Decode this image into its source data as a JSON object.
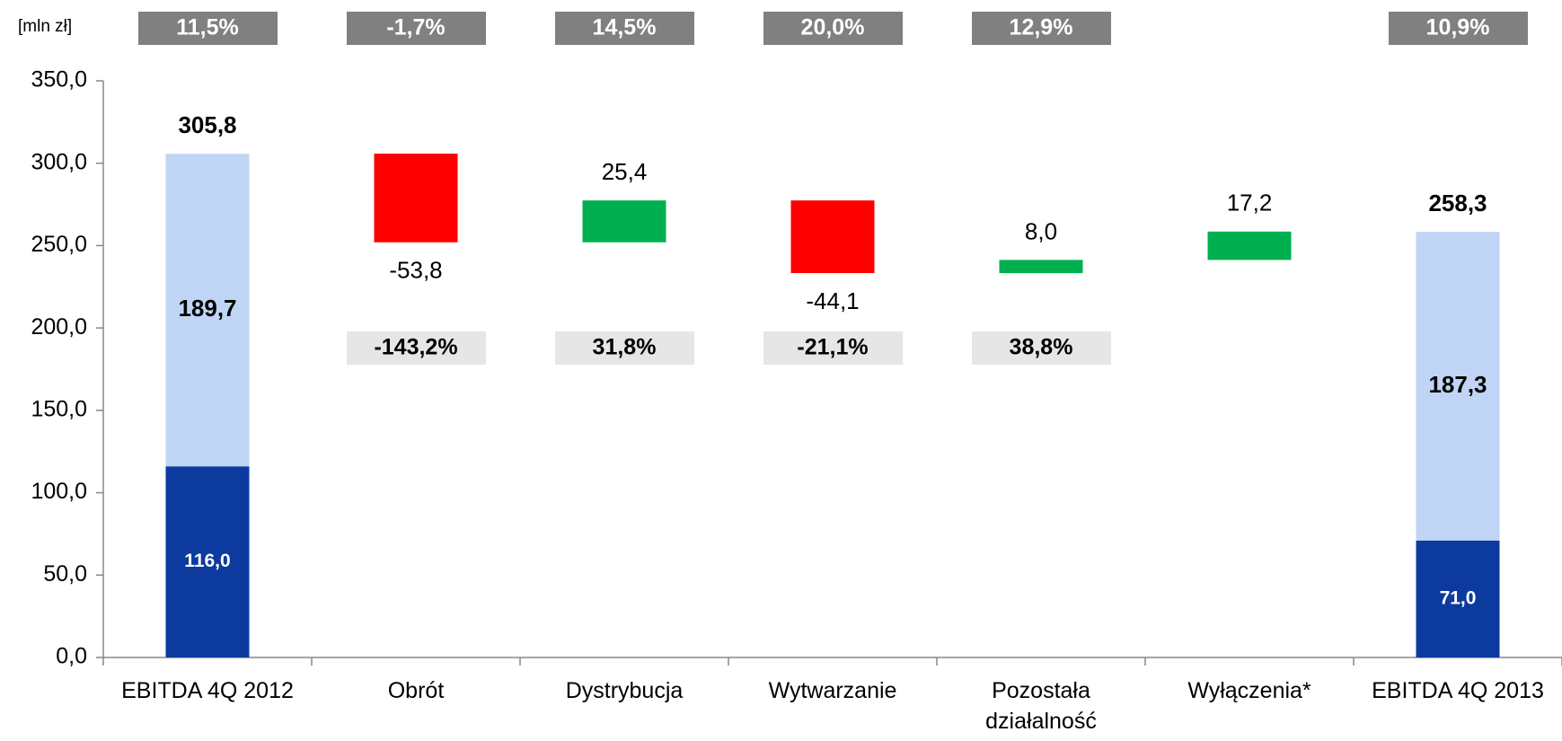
{
  "chart_data": {
    "type": "waterfall",
    "unit_label": "[mln zł]",
    "categories": [
      "EBITDA 4Q 2012",
      "Obrót",
      "Dystrybucja",
      "Wytwarzanie",
      "Pozostała\ndziałalność",
      "Wyłączenia*",
      "EBITDA 4Q 2013"
    ],
    "ylim": [
      0,
      350
    ],
    "yticks": [
      {
        "value": 0,
        "label": "0,0"
      },
      {
        "value": 50,
        "label": "50,0"
      },
      {
        "value": 100,
        "label": "100,0"
      },
      {
        "value": 150,
        "label": "150,0"
      },
      {
        "value": 200,
        "label": "200,0"
      },
      {
        "value": 250,
        "label": "250,0"
      },
      {
        "value": 300,
        "label": "300,0"
      },
      {
        "value": 350,
        "label": "350,0"
      }
    ],
    "totals": {
      "values": [
        305.8,
        null,
        null,
        null,
        null,
        null,
        258.3
      ],
      "value_labels": [
        "305,8",
        null,
        null,
        null,
        null,
        null,
        "258,3"
      ]
    },
    "series": [
      {
        "color": "#0d3a9e",
        "values": [
          116,
          null,
          null,
          null,
          null,
          null,
          71
        ],
        "value_labels": [
          "116,0",
          null,
          null,
          null,
          null,
          null,
          "71,0"
        ]
      },
      {
        "color": "#c0d5f5",
        "values": [
          189.7,
          null,
          null,
          null,
          null,
          null,
          187.3
        ],
        "value_labels": [
          "189,7",
          null,
          null,
          null,
          null,
          null,
          "187,3"
        ]
      }
    ],
    "deltas": {
      "color_up": "#00b050",
      "color_down": "#ff0000",
      "values": [
        null,
        -53.8,
        25.4,
        -44.1,
        8,
        17.2,
        null
      ],
      "value_labels": [
        null,
        "-53,8",
        "25,4",
        "-44,1",
        "8,0",
        "17,2",
        null
      ]
    },
    "top_percentages": {
      "color": "#808080",
      "values": [
        11.5,
        -1.7,
        14.5,
        20,
        12.9,
        null,
        10.9
      ],
      "value_labels": [
        "11,5%",
        "-1,7%",
        "14,5%",
        "20,0%",
        "12,9%",
        null,
        "10,9%"
      ]
    },
    "bottom_percentages": {
      "color": "#e6e6e6",
      "values": [
        null,
        -143.2,
        31.8,
        -21.1,
        38.8,
        null,
        null
      ],
      "value_labels": [
        null,
        "-143,2%",
        "31,8%",
        "-21,1%",
        "38,8%",
        null,
        null
      ]
    }
  }
}
